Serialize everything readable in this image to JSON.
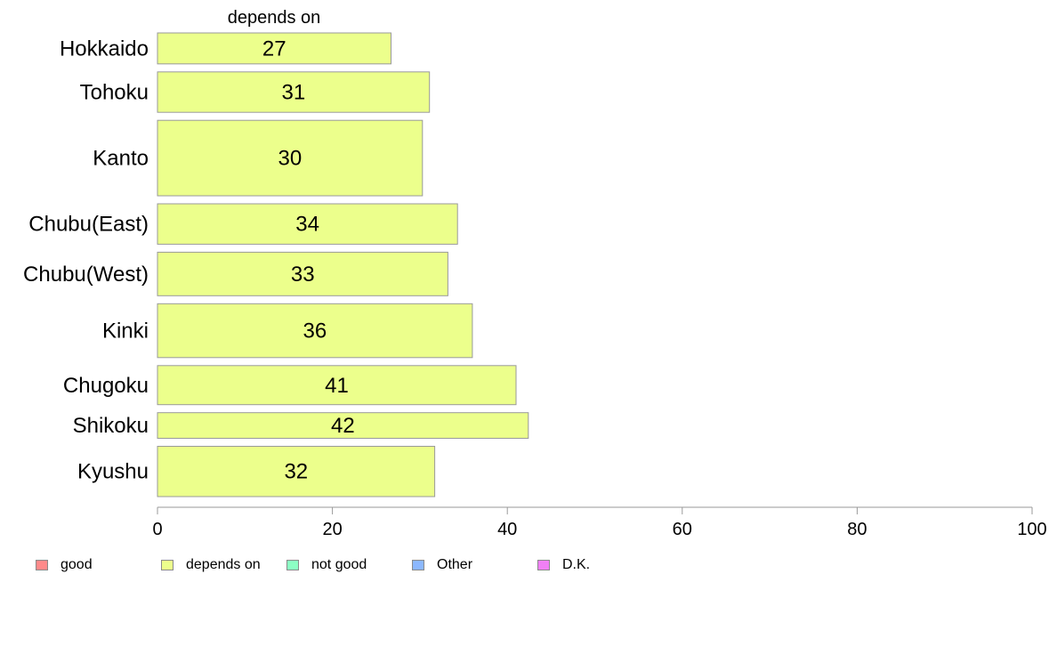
{
  "chart_data": {
    "type": "bar",
    "orientation": "horizontal",
    "panel_title": "depends on",
    "categories": [
      "Hokkaido",
      "Tohoku",
      "Kanto",
      "Chubu(East)",
      "Chubu(West)",
      "Kinki",
      "Chugoku",
      "Shikoku",
      "Kyushu"
    ],
    "values": [
      26.7,
      31.1,
      30.3,
      34.3,
      33.2,
      36.0,
      41.0,
      42.4,
      31.7
    ],
    "value_labels": [
      "27",
      "31",
      "30",
      "34",
      "33",
      "36",
      "41",
      "42",
      "32"
    ],
    "bar_weights": [
      0.69,
      0.9,
      1.68,
      0.9,
      0.97,
      1.2,
      0.87,
      0.57,
      1.12
    ],
    "xlim": [
      0,
      100
    ],
    "xticks": [
      0,
      20,
      40,
      60,
      80,
      100
    ],
    "xtick_labels": [
      "0",
      "20",
      "40",
      "60",
      "80",
      "100"
    ],
    "grid": false,
    "legend_placement": "bottom",
    "legend": [
      {
        "label": "good",
        "color": "#ff8a8a"
      },
      {
        "label": "depends on",
        "color": "#ecff8c"
      },
      {
        "label": "not good",
        "color": "#8cffc4"
      },
      {
        "label": "Other",
        "color": "#8cb8ff"
      },
      {
        "label": "D.K.",
        "color": "#f080f5"
      }
    ],
    "bar_color": "#ecff8c",
    "bar_edge_color": "#9a9a9a",
    "axis_color": "#9a9a9a"
  }
}
